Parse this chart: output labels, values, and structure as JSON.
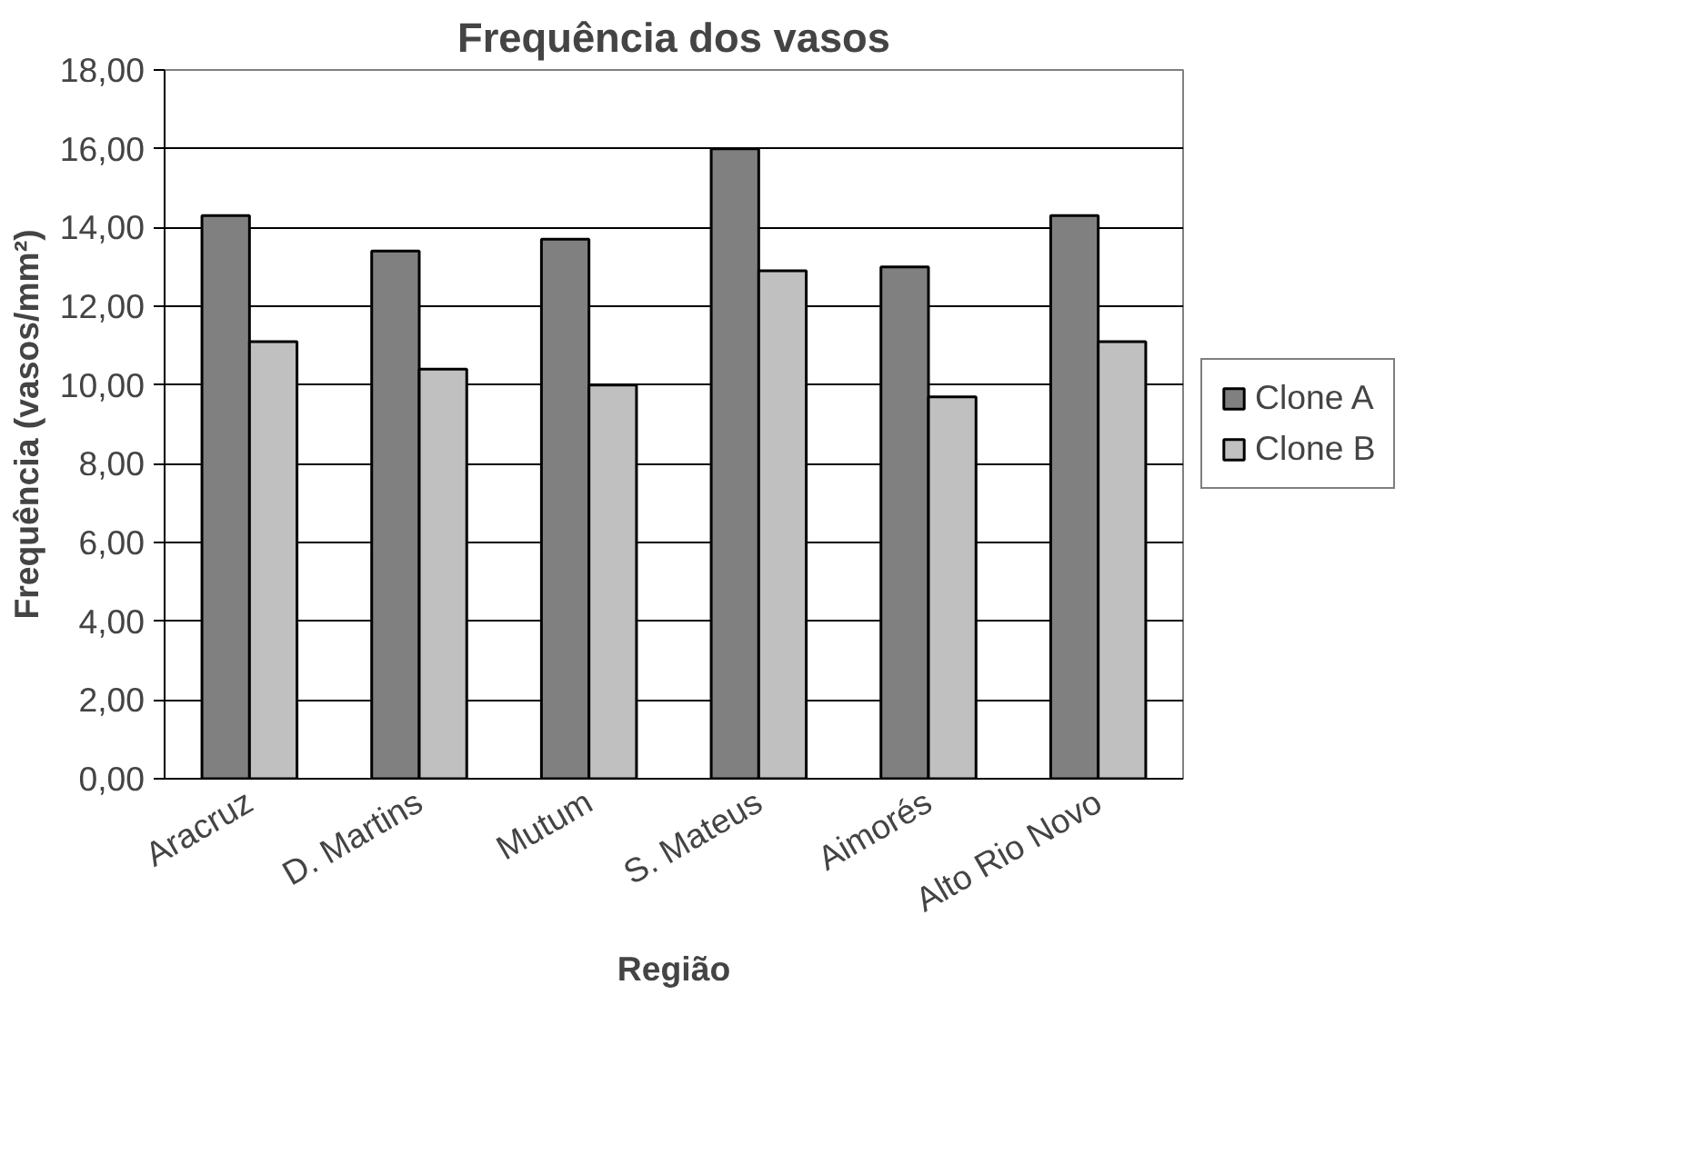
{
  "chart_data": {
    "type": "bar",
    "title": "Frequência dos vasos",
    "xlabel": "Região",
    "ylabel": "Frequência (vasos/mm²)",
    "categories": [
      "Aracruz",
      "D. Martins",
      "Mutum",
      "S. Mateus",
      "Aimorés",
      "Alto Rio Novo"
    ],
    "series": [
      {
        "name": "Clone A",
        "color": "#808080",
        "values": [
          14.3,
          13.4,
          13.7,
          16.0,
          13.0,
          14.3
        ]
      },
      {
        "name": "Clone B",
        "color": "#c0c0c0",
        "values": [
          11.1,
          10.4,
          10.0,
          12.9,
          9.7,
          11.1
        ]
      }
    ],
    "ylim": [
      0,
      18
    ],
    "yticks": [
      {
        "value": 0,
        "label": "0,00"
      },
      {
        "value": 2,
        "label": "2,00"
      },
      {
        "value": 4,
        "label": "4,00"
      },
      {
        "value": 6,
        "label": "6,00"
      },
      {
        "value": 8,
        "label": "8,00"
      },
      {
        "value": 10,
        "label": "10,00"
      },
      {
        "value": 12,
        "label": "12,00"
      },
      {
        "value": 14,
        "label": "14,00"
      },
      {
        "value": 16,
        "label": "16,00"
      },
      {
        "value": 18,
        "label": "18,00"
      }
    ],
    "grid": "y",
    "legend": "right"
  }
}
